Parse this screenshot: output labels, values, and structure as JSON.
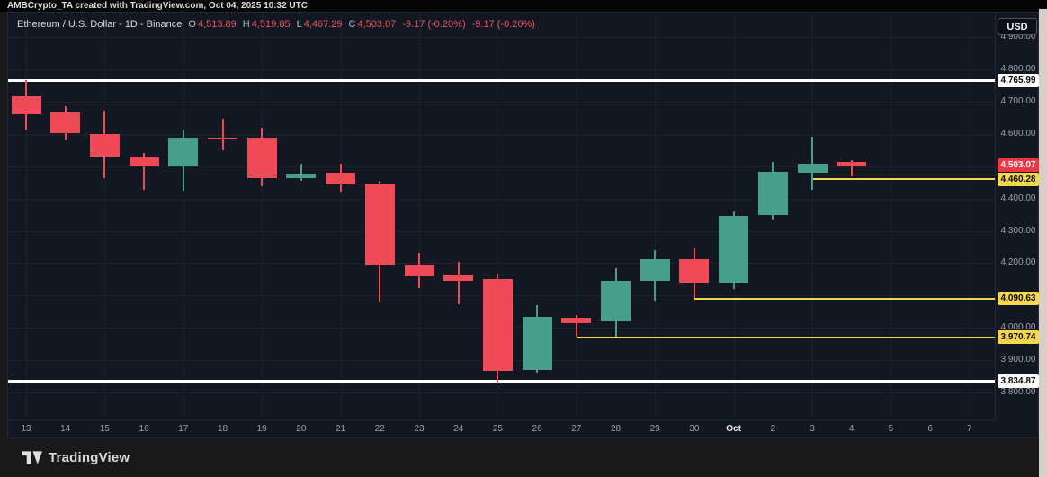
{
  "attribution": "AMBCrypto_TA created with TradingView.com, Oct 04, 2025 10:32 UTC",
  "header": {
    "title": "Ethereum / U.S. Dollar - 1D - Binance",
    "ohlc": [
      {
        "label": "O",
        "value": "4,513.89"
      },
      {
        "label": "H",
        "value": "4,519.85"
      },
      {
        "label": "L",
        "value": "4,467.29"
      },
      {
        "label": "C",
        "value": "4,503.07"
      }
    ],
    "change": "-9.17 (-0.20%)",
    "change_secondary": "-9.17 (-0.20%)"
  },
  "currency_button": "USD",
  "footer": {
    "logo_text": "TradingView"
  },
  "colors": {
    "up": "#469e8b",
    "down": "#ef4a57",
    "down_badge": "#f23645",
    "level_yellow": "#f6d64a",
    "level_white": "#ffffff",
    "axis_text": "#9aa0ac",
    "chart_bg": "#131722"
  },
  "chart_data": {
    "type": "candlestick",
    "symbol": "Ethereum / U.S. Dollar",
    "interval": "1D",
    "exchange": "Binance",
    "ylabel": "Price (USD)",
    "grid": true,
    "scale": {
      "price_top": 4976,
      "price_bottom": 3716
    },
    "candles": [
      {
        "date": "Sep 13",
        "open": 4717,
        "high": 4766,
        "low": 4614,
        "close": 4661
      },
      {
        "date": "Sep 14",
        "open": 4667,
        "high": 4686,
        "low": 4580,
        "close": 4602
      },
      {
        "date": "Sep 15",
        "open": 4600,
        "high": 4672,
        "low": 4463,
        "close": 4530
      },
      {
        "date": "Sep 16",
        "open": 4527,
        "high": 4541,
        "low": 4427,
        "close": 4499
      },
      {
        "date": "Sep 17",
        "open": 4499,
        "high": 4614,
        "low": 4424,
        "close": 4588
      },
      {
        "date": "Sep 18",
        "open": 4588,
        "high": 4647,
        "low": 4549,
        "close": 4582
      },
      {
        "date": "Sep 19",
        "open": 4588,
        "high": 4619,
        "low": 4438,
        "close": 4463
      },
      {
        "date": "Sep 20",
        "open": 4463,
        "high": 4508,
        "low": 4455,
        "close": 4477
      },
      {
        "date": "Sep 21",
        "open": 4480,
        "high": 4508,
        "low": 4421,
        "close": 4444
      },
      {
        "date": "Sep 22",
        "open": 4446,
        "high": 4455,
        "low": 4078,
        "close": 4196
      },
      {
        "date": "Sep 23",
        "open": 4196,
        "high": 4232,
        "low": 4123,
        "close": 4159
      },
      {
        "date": "Sep 24",
        "open": 4165,
        "high": 4204,
        "low": 4073,
        "close": 4145
      },
      {
        "date": "Sep 25",
        "open": 4151,
        "high": 4168,
        "low": 3828,
        "close": 3867
      },
      {
        "date": "Sep 26",
        "open": 3869,
        "high": 4070,
        "low": 3860,
        "close": 4034
      },
      {
        "date": "Sep 27",
        "open": 4030,
        "high": 4039,
        "low": 3971,
        "close": 4014
      },
      {
        "date": "Sep 28",
        "open": 4019,
        "high": 4184,
        "low": 3971,
        "close": 4145
      },
      {
        "date": "Sep 29",
        "open": 4145,
        "high": 4240,
        "low": 4084,
        "close": 4212
      },
      {
        "date": "Sep 30",
        "open": 4212,
        "high": 4246,
        "low": 4091,
        "close": 4140
      },
      {
        "date": "Oct 1",
        "open": 4140,
        "high": 4360,
        "low": 4120,
        "close": 4346
      },
      {
        "date": "Oct 2",
        "open": 4349,
        "high": 4513,
        "low": 4335,
        "close": 4483
      },
      {
        "date": "Oct 3",
        "open": 4480,
        "high": 4591,
        "low": 4427,
        "close": 4508
      },
      {
        "date": "Oct 4",
        "open": 4513.89,
        "high": 4519.85,
        "low": 4467.29,
        "close": 4503.07
      }
    ],
    "levels": [
      {
        "price": 4765.99,
        "color": "white",
        "from_candle": null
      },
      {
        "price": 3834.87,
        "color": "white",
        "from_candle": null
      },
      {
        "price": 4460.28,
        "color": "yellow",
        "from_candle": 20
      },
      {
        "price": 4090.63,
        "color": "yellow",
        "from_candle": 17
      },
      {
        "price": 3970.74,
        "color": "yellow",
        "from_candle": 14
      }
    ],
    "price_ticks": [
      {
        "label": "4,900.00",
        "price": 4900
      },
      {
        "label": "4,800.00",
        "price": 4800
      },
      {
        "label": "4,700.00",
        "price": 4700
      },
      {
        "label": "4,600.00",
        "price": 4600
      },
      {
        "label": "4,400.00",
        "price": 4400
      },
      {
        "label": "4,300.00",
        "price": 4300
      },
      {
        "label": "4,200.00",
        "price": 4200
      },
      {
        "label": "4,000.00",
        "price": 4000
      },
      {
        "label": "3,900.00",
        "price": 3900
      },
      {
        "label": "3,800.00",
        "price": 3800
      }
    ],
    "price_badges": [
      {
        "label": "4,765.99",
        "price": 4765.99,
        "style": "white"
      },
      {
        "label": "4,503.07",
        "price": 4503.07,
        "style": "red"
      },
      {
        "label": "4,460.28",
        "price": 4460.28,
        "style": "yellow"
      },
      {
        "label": "4,090.63",
        "price": 4090.63,
        "style": "yellow"
      },
      {
        "label": "3,970.74",
        "price": 3970.74,
        "style": "yellow"
      },
      {
        "label": "3,834.87",
        "price": 3834.87,
        "style": "white"
      }
    ],
    "time_ticks": [
      {
        "label": "13"
      },
      {
        "label": "14"
      },
      {
        "label": "15"
      },
      {
        "label": "16"
      },
      {
        "label": "17"
      },
      {
        "label": "18"
      },
      {
        "label": "19"
      },
      {
        "label": "20"
      },
      {
        "label": "21"
      },
      {
        "label": "22"
      },
      {
        "label": "23"
      },
      {
        "label": "24"
      },
      {
        "label": "25"
      },
      {
        "label": "26"
      },
      {
        "label": "27"
      },
      {
        "label": "28"
      },
      {
        "label": "29"
      },
      {
        "label": "30"
      },
      {
        "label": "Oct",
        "major": true
      },
      {
        "label": "2"
      },
      {
        "label": "3"
      },
      {
        "label": "4"
      },
      {
        "label": "5"
      },
      {
        "label": "6"
      },
      {
        "label": "7"
      }
    ]
  }
}
